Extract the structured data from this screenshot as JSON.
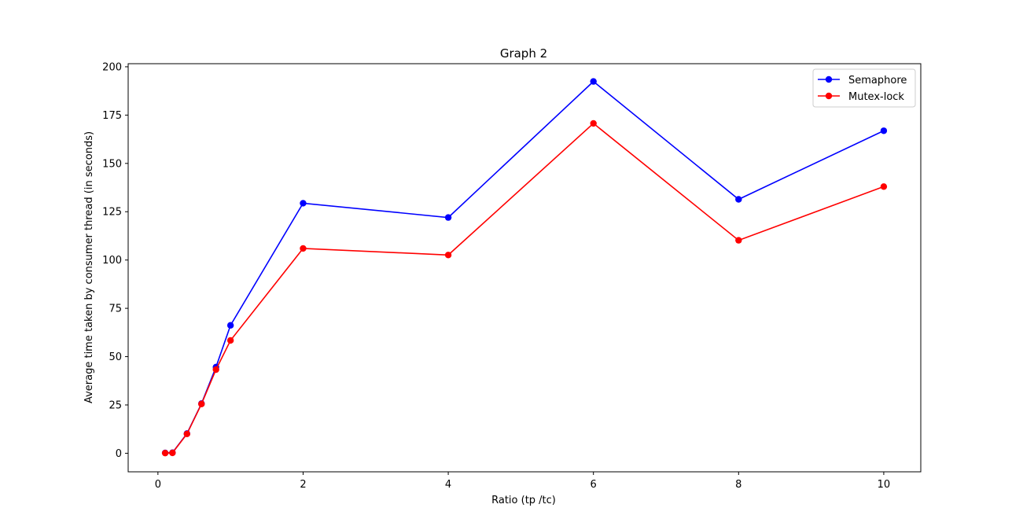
{
  "chart_data": {
    "type": "line",
    "title": "Graph 2",
    "xlabel": "Ratio (tp /tc)",
    "ylabel": "Average time taken by consumer thread (in seconds)",
    "xlim": [
      -0.41,
      10.51
    ],
    "ylim": [
      -9.6,
      201.6
    ],
    "xticks": [
      0,
      2,
      4,
      6,
      8,
      10
    ],
    "yticks": [
      0,
      25,
      50,
      75,
      100,
      125,
      150,
      175,
      200
    ],
    "grid": false,
    "legend_position": "top-right",
    "x": [
      0.1,
      0.2,
      0.4,
      0.6,
      0.8,
      1,
      2,
      4,
      6,
      8,
      10
    ],
    "series": [
      {
        "name": "Semaphore",
        "color": "#0000ff",
        "marker": "circle",
        "values": [
          0.2,
          0.3,
          10.2,
          25.7,
          44.6,
          66.2,
          129.4,
          122.0,
          192.4,
          131.4,
          166.9
        ]
      },
      {
        "name": "Mutex-lock",
        "color": "#ff0000",
        "marker": "circle",
        "values": [
          0.1,
          0.2,
          10.0,
          25.5,
          43.3,
          58.4,
          106.0,
          102.6,
          170.7,
          110.2,
          138.0
        ]
      }
    ]
  }
}
